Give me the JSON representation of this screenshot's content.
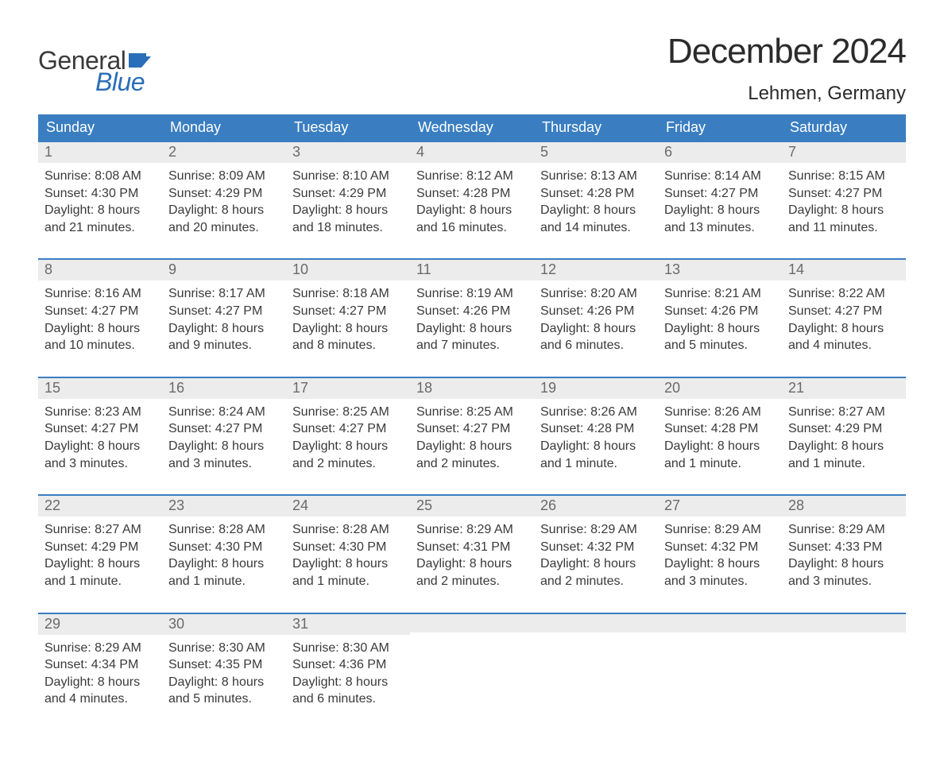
{
  "brand": {
    "word1": "General",
    "word2": "Blue",
    "word1_color": "#3a3a3a",
    "word2_color": "#2a6db8",
    "flag_color": "#2a6db8"
  },
  "title": "December 2024",
  "location": "Lehmen, Germany",
  "colors": {
    "header_bg": "#3a7ec1",
    "header_text": "#ffffff",
    "daynum_bg": "#ececec",
    "daynum_text": "#6a6a6a",
    "row_rule": "#3a7ec1",
    "body_text": "#3a3a3a",
    "page_bg": "#ffffff"
  },
  "typography": {
    "title_fontsize": 44,
    "location_fontsize": 24,
    "dow_fontsize": 18,
    "daynum_fontsize": 18,
    "body_fontsize": 16
  },
  "days_of_week": [
    "Sunday",
    "Monday",
    "Tuesday",
    "Wednesday",
    "Thursday",
    "Friday",
    "Saturday"
  ],
  "weeks": [
    [
      {
        "num": "1",
        "sunrise": "Sunrise: 8:08 AM",
        "sunset": "Sunset: 4:30 PM",
        "dl1": "Daylight: 8 hours",
        "dl2": "and 21 minutes."
      },
      {
        "num": "2",
        "sunrise": "Sunrise: 8:09 AM",
        "sunset": "Sunset: 4:29 PM",
        "dl1": "Daylight: 8 hours",
        "dl2": "and 20 minutes."
      },
      {
        "num": "3",
        "sunrise": "Sunrise: 8:10 AM",
        "sunset": "Sunset: 4:29 PM",
        "dl1": "Daylight: 8 hours",
        "dl2": "and 18 minutes."
      },
      {
        "num": "4",
        "sunrise": "Sunrise: 8:12 AM",
        "sunset": "Sunset: 4:28 PM",
        "dl1": "Daylight: 8 hours",
        "dl2": "and 16 minutes."
      },
      {
        "num": "5",
        "sunrise": "Sunrise: 8:13 AM",
        "sunset": "Sunset: 4:28 PM",
        "dl1": "Daylight: 8 hours",
        "dl2": "and 14 minutes."
      },
      {
        "num": "6",
        "sunrise": "Sunrise: 8:14 AM",
        "sunset": "Sunset: 4:27 PM",
        "dl1": "Daylight: 8 hours",
        "dl2": "and 13 minutes."
      },
      {
        "num": "7",
        "sunrise": "Sunrise: 8:15 AM",
        "sunset": "Sunset: 4:27 PM",
        "dl1": "Daylight: 8 hours",
        "dl2": "and 11 minutes."
      }
    ],
    [
      {
        "num": "8",
        "sunrise": "Sunrise: 8:16 AM",
        "sunset": "Sunset: 4:27 PM",
        "dl1": "Daylight: 8 hours",
        "dl2": "and 10 minutes."
      },
      {
        "num": "9",
        "sunrise": "Sunrise: 8:17 AM",
        "sunset": "Sunset: 4:27 PM",
        "dl1": "Daylight: 8 hours",
        "dl2": "and 9 minutes."
      },
      {
        "num": "10",
        "sunrise": "Sunrise: 8:18 AM",
        "sunset": "Sunset: 4:27 PM",
        "dl1": "Daylight: 8 hours",
        "dl2": "and 8 minutes."
      },
      {
        "num": "11",
        "sunrise": "Sunrise: 8:19 AM",
        "sunset": "Sunset: 4:26 PM",
        "dl1": "Daylight: 8 hours",
        "dl2": "and 7 minutes."
      },
      {
        "num": "12",
        "sunrise": "Sunrise: 8:20 AM",
        "sunset": "Sunset: 4:26 PM",
        "dl1": "Daylight: 8 hours",
        "dl2": "and 6 minutes."
      },
      {
        "num": "13",
        "sunrise": "Sunrise: 8:21 AM",
        "sunset": "Sunset: 4:26 PM",
        "dl1": "Daylight: 8 hours",
        "dl2": "and 5 minutes."
      },
      {
        "num": "14",
        "sunrise": "Sunrise: 8:22 AM",
        "sunset": "Sunset: 4:27 PM",
        "dl1": "Daylight: 8 hours",
        "dl2": "and 4 minutes."
      }
    ],
    [
      {
        "num": "15",
        "sunrise": "Sunrise: 8:23 AM",
        "sunset": "Sunset: 4:27 PM",
        "dl1": "Daylight: 8 hours",
        "dl2": "and 3 minutes."
      },
      {
        "num": "16",
        "sunrise": "Sunrise: 8:24 AM",
        "sunset": "Sunset: 4:27 PM",
        "dl1": "Daylight: 8 hours",
        "dl2": "and 3 minutes."
      },
      {
        "num": "17",
        "sunrise": "Sunrise: 8:25 AM",
        "sunset": "Sunset: 4:27 PM",
        "dl1": "Daylight: 8 hours",
        "dl2": "and 2 minutes."
      },
      {
        "num": "18",
        "sunrise": "Sunrise: 8:25 AM",
        "sunset": "Sunset: 4:27 PM",
        "dl1": "Daylight: 8 hours",
        "dl2": "and 2 minutes."
      },
      {
        "num": "19",
        "sunrise": "Sunrise: 8:26 AM",
        "sunset": "Sunset: 4:28 PM",
        "dl1": "Daylight: 8 hours",
        "dl2": "and 1 minute."
      },
      {
        "num": "20",
        "sunrise": "Sunrise: 8:26 AM",
        "sunset": "Sunset: 4:28 PM",
        "dl1": "Daylight: 8 hours",
        "dl2": "and 1 minute."
      },
      {
        "num": "21",
        "sunrise": "Sunrise: 8:27 AM",
        "sunset": "Sunset: 4:29 PM",
        "dl1": "Daylight: 8 hours",
        "dl2": "and 1 minute."
      }
    ],
    [
      {
        "num": "22",
        "sunrise": "Sunrise: 8:27 AM",
        "sunset": "Sunset: 4:29 PM",
        "dl1": "Daylight: 8 hours",
        "dl2": "and 1 minute."
      },
      {
        "num": "23",
        "sunrise": "Sunrise: 8:28 AM",
        "sunset": "Sunset: 4:30 PM",
        "dl1": "Daylight: 8 hours",
        "dl2": "and 1 minute."
      },
      {
        "num": "24",
        "sunrise": "Sunrise: 8:28 AM",
        "sunset": "Sunset: 4:30 PM",
        "dl1": "Daylight: 8 hours",
        "dl2": "and 1 minute."
      },
      {
        "num": "25",
        "sunrise": "Sunrise: 8:29 AM",
        "sunset": "Sunset: 4:31 PM",
        "dl1": "Daylight: 8 hours",
        "dl2": "and 2 minutes."
      },
      {
        "num": "26",
        "sunrise": "Sunrise: 8:29 AM",
        "sunset": "Sunset: 4:32 PM",
        "dl1": "Daylight: 8 hours",
        "dl2": "and 2 minutes."
      },
      {
        "num": "27",
        "sunrise": "Sunrise: 8:29 AM",
        "sunset": "Sunset: 4:32 PM",
        "dl1": "Daylight: 8 hours",
        "dl2": "and 3 minutes."
      },
      {
        "num": "28",
        "sunrise": "Sunrise: 8:29 AM",
        "sunset": "Sunset: 4:33 PM",
        "dl1": "Daylight: 8 hours",
        "dl2": "and 3 minutes."
      }
    ],
    [
      {
        "num": "29",
        "sunrise": "Sunrise: 8:29 AM",
        "sunset": "Sunset: 4:34 PM",
        "dl1": "Daylight: 8 hours",
        "dl2": "and 4 minutes."
      },
      {
        "num": "30",
        "sunrise": "Sunrise: 8:30 AM",
        "sunset": "Sunset: 4:35 PM",
        "dl1": "Daylight: 8 hours",
        "dl2": "and 5 minutes."
      },
      {
        "num": "31",
        "sunrise": "Sunrise: 8:30 AM",
        "sunset": "Sunset: 4:36 PM",
        "dl1": "Daylight: 8 hours",
        "dl2": "and 6 minutes."
      },
      null,
      null,
      null,
      null
    ]
  ]
}
